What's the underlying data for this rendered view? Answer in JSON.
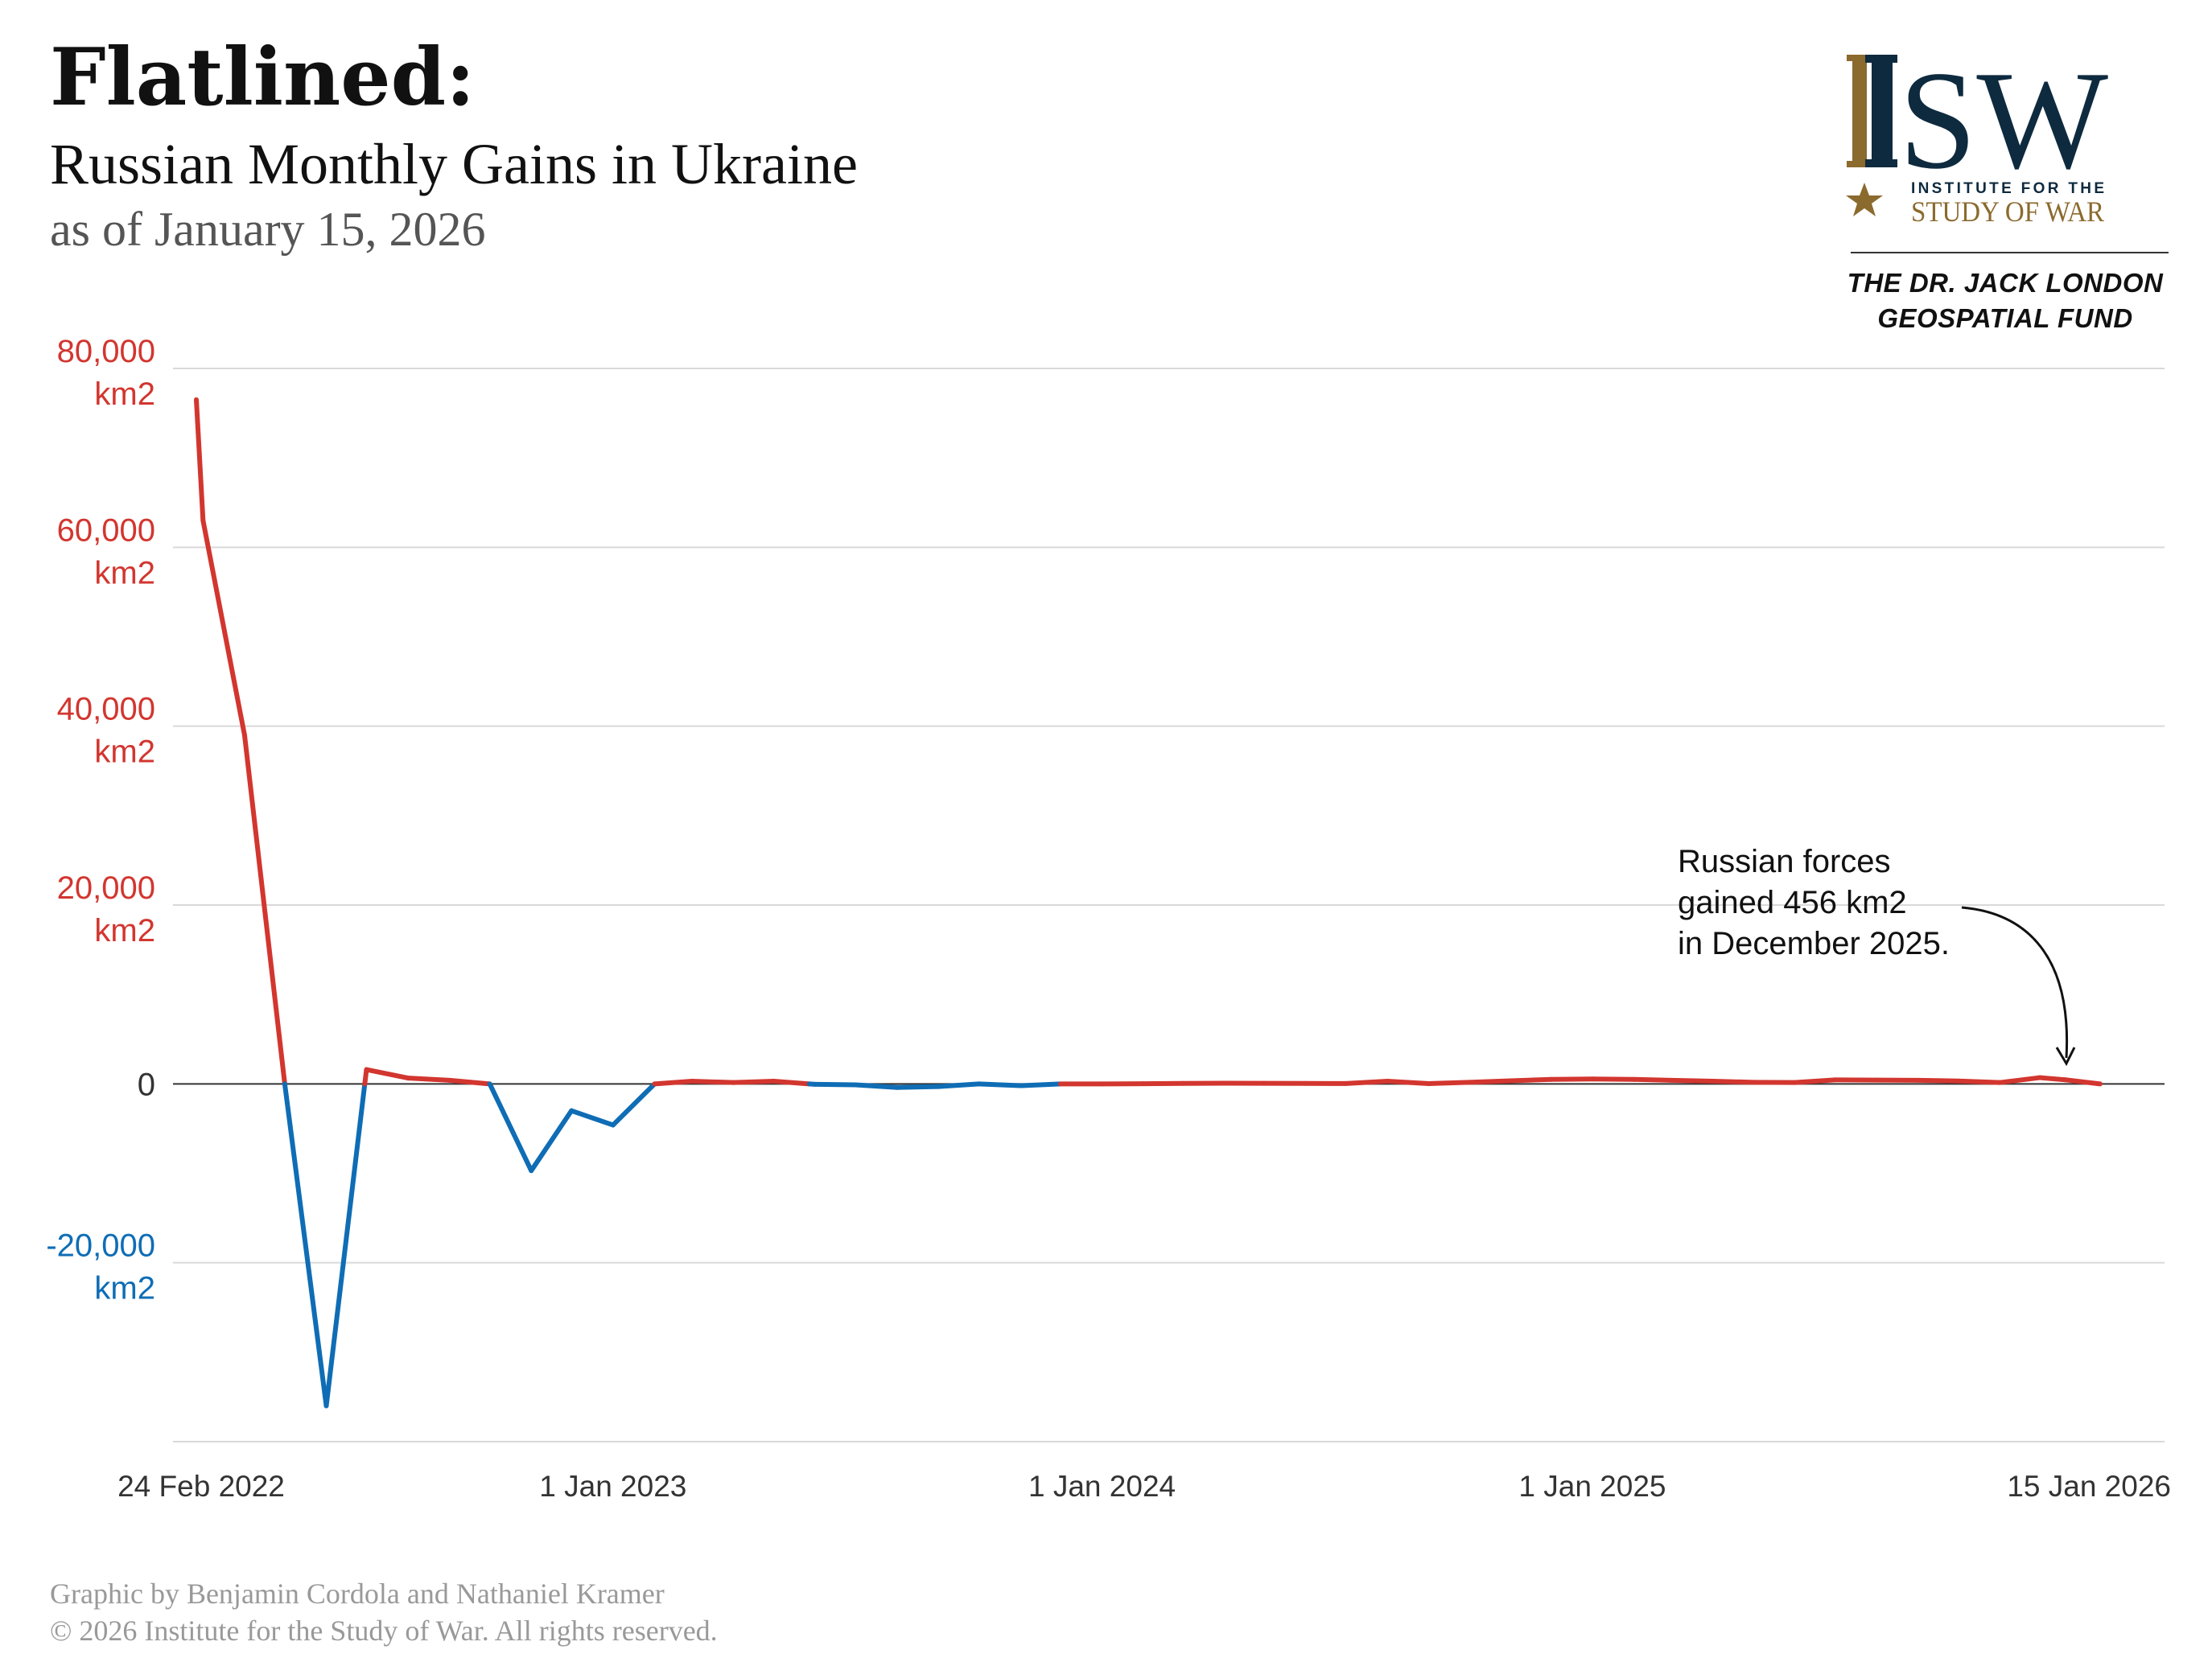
{
  "header": {
    "title": "Flatlined:",
    "subtitle": "Russian Monthly Gains in Ukraine",
    "date": "as of January 15, 2026"
  },
  "logo": {
    "mark": "ISW",
    "line1": "INSTITUTE FOR THE",
    "line2": "STUDY OF WAR",
    "star_icon": "star-icon",
    "colors": {
      "navy": "#0e2a3f",
      "gold": "#8b6a2e"
    }
  },
  "fund": {
    "line1": "THE DR. JACK LONDON",
    "line2": "GEOSPATIAL FUND"
  },
  "annotation": {
    "line1": "Russian forces",
    "line2": "gained 456 km2",
    "line3": "in December 2025."
  },
  "credits": {
    "line1": "Graphic by Benjamin Cordola and Nathaniel Kramer",
    "line2": "© 2026 Institute for the Study of War. All rights reserved."
  },
  "colors": {
    "gain": "#d2362f",
    "loss": "#0f6db5",
    "grid": "#d9d9d9",
    "zero": "#333333",
    "axis_text": "#333333"
  },
  "chart_data": {
    "type": "line",
    "title": "Russian Monthly Gains in Ukraine",
    "ylim": [
      -40000,
      80000
    ],
    "grid": true,
    "y_ticks": [
      {
        "value": 80000,
        "label1": "80,000",
        "label2": "km2",
        "color": "gain"
      },
      {
        "value": 60000,
        "label1": "60,000",
        "label2": "km2",
        "color": "gain"
      },
      {
        "value": 40000,
        "label1": "40,000",
        "label2": "km2",
        "color": "gain"
      },
      {
        "value": 20000,
        "label1": "20,000",
        "label2": "km2",
        "color": "gain"
      },
      {
        "value": 0,
        "label1": "0",
        "label2": "",
        "color": "neutral"
      },
      {
        "value": -20000,
        "label1": "-20,000",
        "label2": "km2",
        "color": "loss"
      }
    ],
    "x_ticks": [
      {
        "date": "2022-02-24",
        "label": "24 Feb 2022"
      },
      {
        "date": "2023-01-01",
        "label": "1 Jan 2023"
      },
      {
        "date": "2024-01-01",
        "label": "1 Jan 2024"
      },
      {
        "date": "2025-01-01",
        "label": "1 Jan 2025"
      },
      {
        "date": "2026-01-15",
        "label": "15 Jan 2026"
      }
    ],
    "points": [
      {
        "date": "2022-02-24",
        "value": 76500
      },
      {
        "date": "2022-03-01",
        "value": 63000
      },
      {
        "date": "2022-04-01",
        "value": 39000
      },
      {
        "date": "2022-05-01",
        "value": 0
      },
      {
        "date": "2022-06-01",
        "value": -36000
      },
      {
        "date": "2022-07-01",
        "value": 1600
      },
      {
        "date": "2022-08-01",
        "value": 650
      },
      {
        "date": "2022-09-01",
        "value": 400
      },
      {
        "date": "2022-10-01",
        "value": 0
      },
      {
        "date": "2022-11-01",
        "value": -9700
      },
      {
        "date": "2022-12-01",
        "value": -3000
      },
      {
        "date": "2023-01-01",
        "value": -4600
      },
      {
        "date": "2023-02-01",
        "value": 0
      },
      {
        "date": "2023-03-01",
        "value": 300
      },
      {
        "date": "2023-04-01",
        "value": 150
      },
      {
        "date": "2023-05-01",
        "value": 300
      },
      {
        "date": "2023-06-01",
        "value": -50
      },
      {
        "date": "2023-07-01",
        "value": -100
      },
      {
        "date": "2023-08-01",
        "value": -400
      },
      {
        "date": "2023-09-01",
        "value": -300
      },
      {
        "date": "2023-10-01",
        "value": 0
      },
      {
        "date": "2023-11-01",
        "value": -200
      },
      {
        "date": "2023-12-01",
        "value": 0
      },
      {
        "date": "2024-01-01",
        "value": 0
      },
      {
        "date": "2024-02-01",
        "value": 20
      },
      {
        "date": "2024-03-01",
        "value": 50
      },
      {
        "date": "2024-04-01",
        "value": 80
      },
      {
        "date": "2024-05-01",
        "value": 60
      },
      {
        "date": "2024-06-01",
        "value": 50
      },
      {
        "date": "2024-07-01",
        "value": 40
      },
      {
        "date": "2024-08-01",
        "value": 300
      },
      {
        "date": "2024-09-01",
        "value": 30
      },
      {
        "date": "2024-10-01",
        "value": 180
      },
      {
        "date": "2024-11-01",
        "value": 350
      },
      {
        "date": "2024-12-01",
        "value": 500
      },
      {
        "date": "2025-01-01",
        "value": 550
      },
      {
        "date": "2025-02-01",
        "value": 500
      },
      {
        "date": "2025-03-01",
        "value": 400
      },
      {
        "date": "2025-04-01",
        "value": 300
      },
      {
        "date": "2025-05-01",
        "value": 180
      },
      {
        "date": "2025-06-01",
        "value": 150
      },
      {
        "date": "2025-07-01",
        "value": 450
      },
      {
        "date": "2025-08-01",
        "value": 420
      },
      {
        "date": "2025-09-01",
        "value": 400
      },
      {
        "date": "2025-10-01",
        "value": 320
      },
      {
        "date": "2025-11-01",
        "value": 150
      },
      {
        "date": "2025-12-01",
        "value": 700
      },
      {
        "date": "2025-12-20",
        "value": 456
      },
      {
        "date": "2026-01-15",
        "value": 0
      }
    ]
  }
}
